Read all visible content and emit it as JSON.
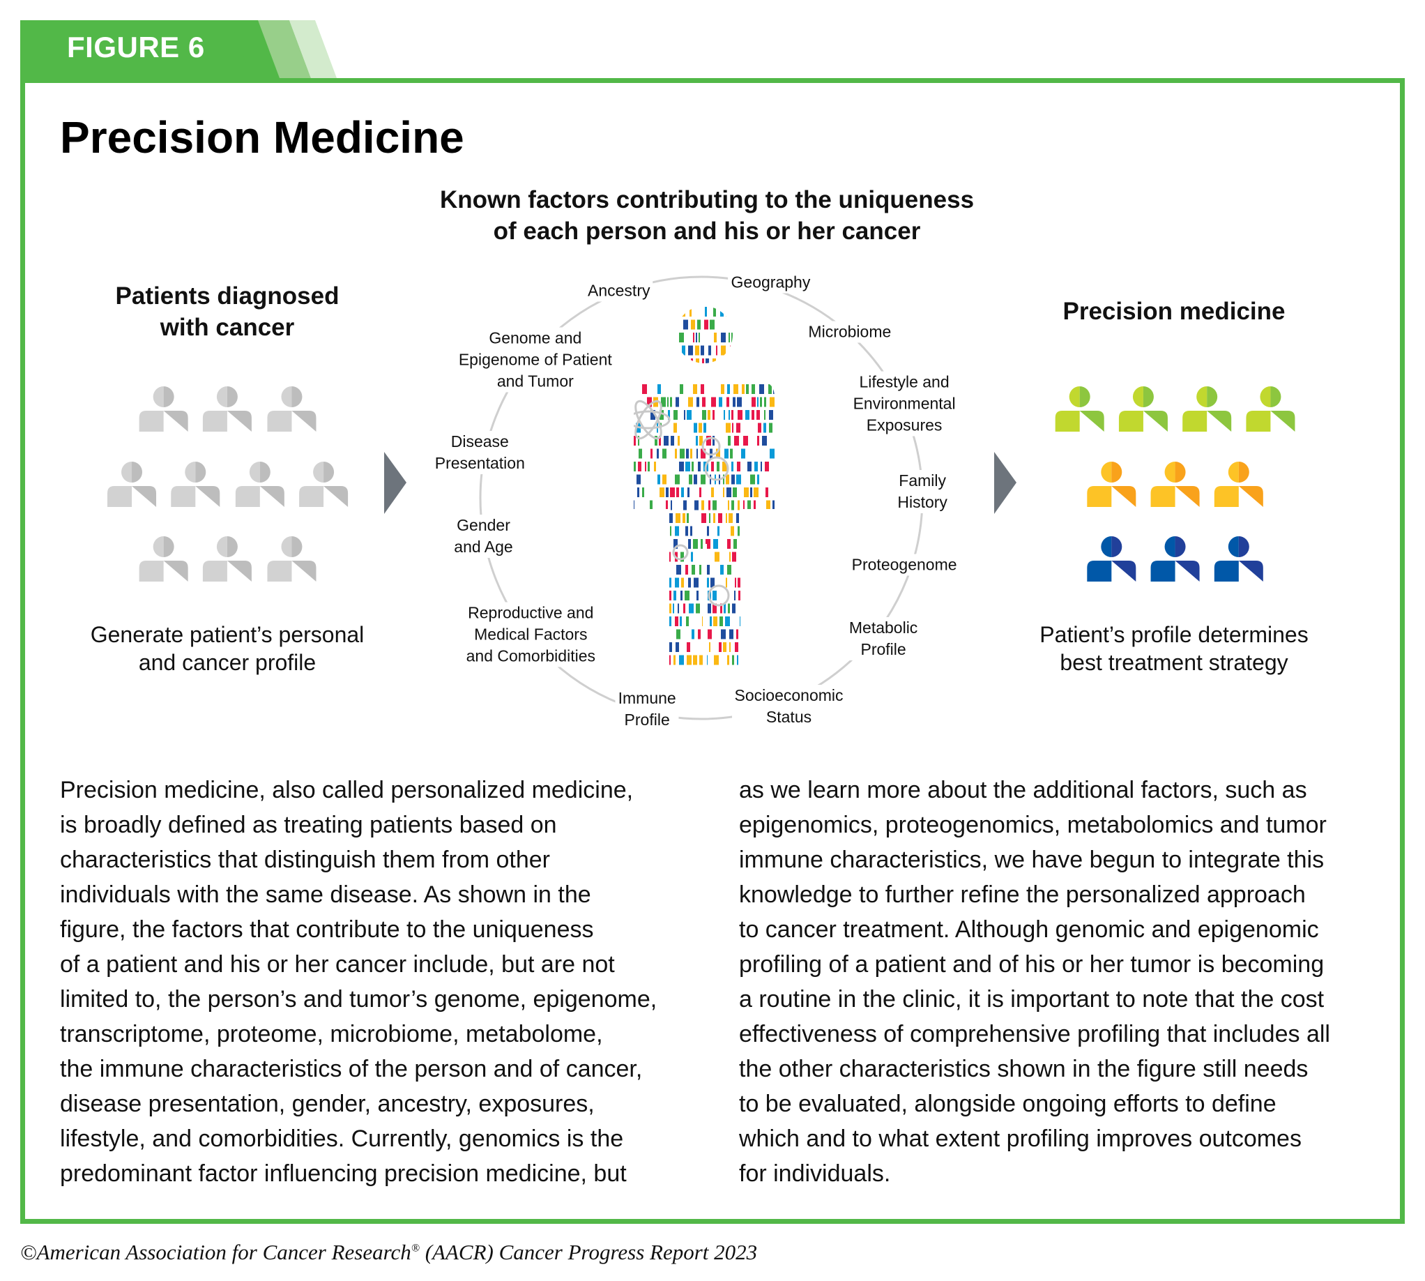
{
  "figure_label": "FIGURE 6",
  "title": "Precision Medicine",
  "subtitle": [
    "Known factors contributing to the uniqueness",
    "of each person and his or her cancer"
  ],
  "left_panel": {
    "heading": [
      "Patients diagnosed",
      "with cancer"
    ],
    "rows": [
      3,
      4,
      3
    ],
    "caption": [
      "Generate patient’s personal",
      "and cancer profile"
    ]
  },
  "right_panel": {
    "heading": [
      "Precision medicine"
    ],
    "rows": [
      4,
      3,
      3
    ],
    "caption": [
      "Patient’s profile determines",
      "best treatment strategy"
    ]
  },
  "factors": [
    {
      "id": "ancestry",
      "lines": [
        "Ancestry"
      ]
    },
    {
      "id": "geography",
      "lines": [
        "Geography"
      ]
    },
    {
      "id": "microbiome",
      "lines": [
        "Microbiome"
      ]
    },
    {
      "id": "lifestyle",
      "lines": [
        "Lifestyle and",
        "Environmental",
        "Exposures"
      ]
    },
    {
      "id": "family-history",
      "lines": [
        "Family",
        "History"
      ]
    },
    {
      "id": "proteogenome",
      "lines": [
        "Proteogenome"
      ]
    },
    {
      "id": "metabolic",
      "lines": [
        "Metabolic",
        "Profile"
      ]
    },
    {
      "id": "socioeconomic",
      "lines": [
        "Socioeconomic",
        "Status"
      ]
    },
    {
      "id": "immune",
      "lines": [
        "Immune",
        "Profile"
      ]
    },
    {
      "id": "reproductive",
      "lines": [
        "Reproductive and",
        "Medical Factors",
        "and Comorbidities"
      ]
    },
    {
      "id": "gender-age",
      "lines": [
        "Gender",
        "and Age"
      ]
    },
    {
      "id": "disease-presentation",
      "lines": [
        "Disease",
        "Presentation"
      ]
    },
    {
      "id": "genome",
      "lines": [
        "Genome and",
        "Epigenome of Patient",
        "and Tumor"
      ]
    }
  ],
  "colors": {
    "frame_green": "#52b848",
    "gray_person": [
      "#d2d2d2",
      "#bdbdbd"
    ],
    "green_person": [
      "#c1d82f",
      "#8dc63f"
    ],
    "orange_person": [
      "#fdc326",
      "#f9a21b"
    ],
    "blue_person": [
      "#0158a8",
      "#21409a"
    ],
    "arrow": "#6d747c",
    "dna_bars": [
      "#e8184a",
      "#fbb813",
      "#0a9ad8",
      "#3aab49",
      "#1f4d9e"
    ]
  },
  "body_left": [
    "Precision medicine, also called personalized medicine,",
    "is broadly defined as treating patients based on",
    "characteristics that distinguish them from other",
    "individuals with the same disease. As shown in the",
    "figure, the factors that contribute to the uniqueness",
    "of a patient and his or her cancer include, but are not",
    "limited to, the person’s and tumor’s genome, epigenome,",
    "transcriptome, proteome, microbiome, metabolome,",
    "the immune characteristics of the person and of cancer,",
    "disease presentation, gender, ancestry, exposures,",
    "lifestyle, and comorbidities. Currently, genomics is the",
    "predominant factor influencing precision medicine, but"
  ],
  "body_right": [
    "as we learn more about the additional factors, such as",
    "epigenomics, proteogenomics, metabolomics and tumor",
    "immune characteristics, we have begun to integrate this",
    "knowledge to further refine the personalized approach",
    "to cancer treatment. Although genomic and epigenomic",
    "profiling of a patient and of his or her tumor is becoming",
    "a routine in the clinic, it is important to note that the cost",
    "effectiveness of comprehensive profiling that includes all",
    "the other characteristics shown in the figure still needs",
    "to be evaluated, alongside ongoing efforts to define",
    "which and to what extent profiling improves outcomes",
    "for individuals."
  ],
  "footer": {
    "prefix": "©American Association for Cancer Research",
    "reg": "®",
    "suffix": " (AACR) Cancer Progress Report 2023"
  }
}
